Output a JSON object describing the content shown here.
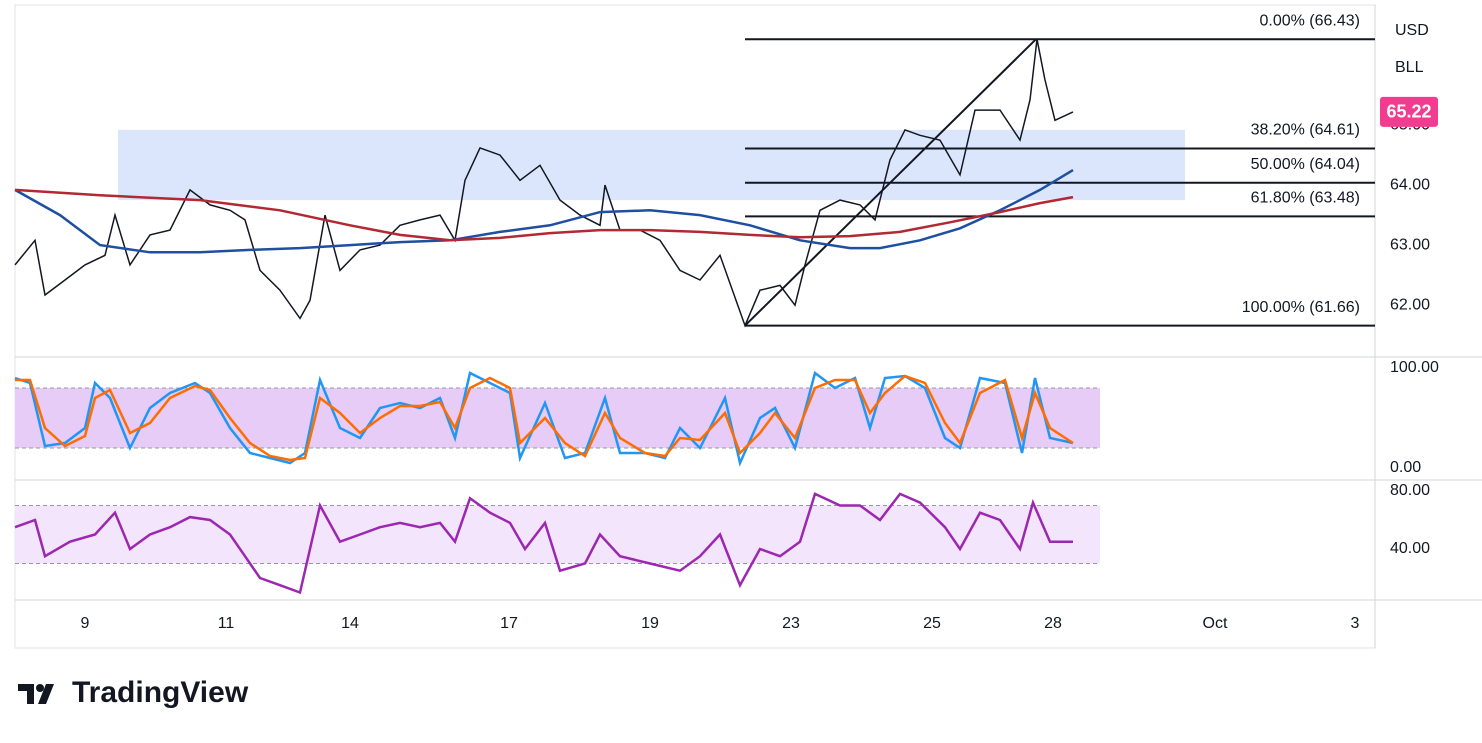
{
  "branding": "TradingView",
  "chart_data": [
    {
      "type": "line",
      "currency": "USD",
      "unit": "BLL",
      "xlim": [
        0,
        136
      ],
      "xticks": [
        {
          "value": 7,
          "label": "9"
        },
        {
          "value": 21.1,
          "label": "11"
        },
        {
          "value": 33.5,
          "label": "14"
        },
        {
          "value": 49.4,
          "label": "17"
        },
        {
          "value": 63.5,
          "label": "19"
        },
        {
          "value": 77.6,
          "label": "23"
        },
        {
          "value": 91.7,
          "label": "25"
        },
        {
          "value": 103.8,
          "label": "28"
        },
        {
          "value": 120,
          "label": "Oct"
        },
        {
          "value": 134,
          "label": "3"
        }
      ],
      "ylim": [
        61.17,
        67.0
      ],
      "yticks": [
        {
          "value": 62,
          "label": "62.00"
        },
        {
          "value": 63,
          "label": "63.00"
        },
        {
          "value": 64,
          "label": "64.00"
        },
        {
          "value": 65,
          "label": "65.00"
        }
      ],
      "last_price": {
        "value": 65.22,
        "label": "65.22",
        "color": "#f23c8f"
      },
      "zone": {
        "from": 63.75,
        "to": 64.92,
        "x": [
          10.3,
          117
        ],
        "color": "#dbe6fd"
      },
      "fib": {
        "x_start": 73,
        "x_end": 102.1,
        "color": "#131722",
        "levels": [
          {
            "label": "0.00% (66.43)",
            "value": 66.43
          },
          {
            "label": "38.20% (64.61)",
            "value": 64.61
          },
          {
            "label": "50.00% (64.04)",
            "value": 64.04
          },
          {
            "label": "61.80% (63.48)",
            "value": 63.48
          },
          {
            "label": "100.00% (61.66)",
            "value": 61.66
          }
        ]
      },
      "series": [
        {
          "color": "#131722",
          "x": [
            0,
            2,
            3,
            5,
            7,
            9,
            10,
            11.5,
            13.5,
            15.5,
            17.5,
            19.5,
            21.5,
            23,
            24.5,
            26.5,
            28.5,
            29.5,
            31,
            32.5,
            34.5,
            36.5,
            38.5,
            40.5,
            42.5,
            44,
            45,
            46.5,
            48.5,
            50.5,
            52.5,
            54.5,
            56.5,
            58.5,
            59,
            60.5,
            62.5,
            64.5,
            66.5,
            68.5,
            70.5,
            73,
            74.5,
            76.5,
            78,
            79,
            80.5,
            82.5,
            84.5,
            86,
            87.5,
            89,
            90.5,
            92.5,
            94.5,
            96,
            98.5,
            100.5,
            101.5,
            102.2,
            103,
            104,
            105.8
          ],
          "values": [
            62.67,
            63.08,
            62.17,
            62.42,
            62.67,
            62.83,
            63.5,
            62.67,
            63.17,
            63.25,
            63.92,
            63.67,
            63.58,
            63.42,
            62.58,
            62.25,
            61.78,
            62.08,
            63.5,
            62.58,
            62.92,
            63,
            63.33,
            63.42,
            63.5,
            63.08,
            64.08,
            64.62,
            64.5,
            64.08,
            64.33,
            63.75,
            63.5,
            63.33,
            64,
            63.25,
            63.25,
            63.08,
            62.58,
            62.42,
            62.83,
            61.66,
            62.25,
            62.33,
            62,
            62.67,
            63.58,
            63.75,
            63.67,
            63.42,
            64.42,
            64.92,
            64.83,
            64.75,
            64.17,
            65.25,
            65.25,
            64.75,
            65.42,
            66.43,
            65.75,
            65.08,
            65.22
          ]
        },
        {
          "color": "#1e4fa0",
          "x": [
            0,
            4.5,
            8.5,
            13.5,
            18.5,
            23.5,
            28.5,
            33.5,
            38.5,
            43.5,
            48.5,
            53.5,
            58.5,
            63.5,
            68.5,
            73.5,
            78.5,
            83.5,
            86.5,
            90.5,
            94.5,
            98.5,
            102.5,
            105.8
          ],
          "values": [
            63.92,
            63.5,
            63,
            62.88,
            62.88,
            62.92,
            62.95,
            63,
            63.05,
            63.08,
            63.22,
            63.33,
            63.55,
            63.58,
            63.5,
            63.33,
            63.08,
            62.95,
            62.95,
            63.08,
            63.28,
            63.58,
            63.92,
            64.25
          ]
        },
        {
          "color": "#b22833",
          "x": [
            0,
            8.5,
            18.5,
            26.5,
            33.5,
            38.5,
            43.5,
            48.5,
            53.5,
            58.5,
            63.5,
            68.5,
            73.5,
            78.5,
            83.5,
            88.5,
            93.5,
            98.5,
            102.5,
            105.8
          ],
          "values": [
            63.92,
            63.83,
            63.75,
            63.58,
            63.33,
            63.17,
            63.08,
            63.12,
            63.2,
            63.25,
            63.25,
            63.22,
            63.17,
            63.13,
            63.15,
            63.22,
            63.38,
            63.55,
            63.7,
            63.8
          ]
        }
      ]
    },
    {
      "type": "line",
      "ylim": [
        -10,
        110
      ],
      "yticks": [
        {
          "value": 100,
          "label": "100.00"
        },
        {
          "value": 0,
          "label": "0.00"
        }
      ],
      "bands": [
        20,
        80
      ],
      "band_color": "#e6ccf7",
      "series": [
        {
          "color": "#2196f3",
          "x": [
            0,
            1.5,
            3,
            5,
            7,
            8,
            9.5,
            11.5,
            13.5,
            15.5,
            18,
            19.5,
            21.5,
            23.5,
            25.5,
            27.5,
            29,
            30.5,
            32.5,
            34.5,
            36.5,
            38.5,
            40.5,
            42.5,
            44,
            45.5,
            47.5,
            49.5,
            50.5,
            53,
            55,
            57,
            59,
            60.5,
            63,
            65,
            66.5,
            68.5,
            71,
            72.5,
            74.5,
            76,
            78,
            80,
            82,
            84,
            85.5,
            87,
            89,
            91,
            93,
            94.5,
            96.5,
            99,
            100.7,
            102,
            103.5,
            105.8
          ],
          "values": [
            90,
            85,
            22,
            25,
            40,
            85,
            70,
            20,
            60,
            75,
            85,
            75,
            40,
            15,
            10,
            5,
            15,
            88,
            40,
            30,
            60,
            65,
            60,
            70,
            30,
            95,
            85,
            75,
            10,
            65,
            10,
            15,
            70,
            15,
            15,
            10,
            40,
            20,
            70,
            5,
            50,
            60,
            20,
            95,
            80,
            90,
            40,
            90,
            92,
            80,
            30,
            20,
            90,
            85,
            15,
            90,
            30,
            25
          ]
        },
        {
          "color": "#ff6d00",
          "x": [
            0,
            1.5,
            3,
            5,
            7,
            8,
            9.5,
            11.5,
            13.5,
            15.5,
            18,
            19.5,
            21.5,
            23.5,
            25.5,
            27.5,
            29,
            30.5,
            32.5,
            34.5,
            36.5,
            38.5,
            40.5,
            42.5,
            44,
            45.5,
            47.5,
            49.5,
            50.5,
            53,
            55,
            57,
            59,
            60.5,
            63,
            65,
            66.5,
            68.5,
            71,
            72.5,
            74.5,
            76,
            78,
            80,
            82,
            84,
            85.5,
            87,
            89,
            91,
            93,
            94.5,
            96.5,
            99,
            100.7,
            102,
            103.5,
            105.8
          ],
          "values": [
            88,
            88,
            40,
            22,
            32,
            70,
            78,
            35,
            45,
            70,
            82,
            78,
            50,
            25,
            12,
            8,
            10,
            70,
            55,
            35,
            50,
            62,
            62,
            66,
            40,
            80,
            90,
            80,
            25,
            50,
            25,
            12,
            55,
            30,
            15,
            12,
            30,
            28,
            55,
            15,
            35,
            55,
            30,
            80,
            88,
            88,
            55,
            75,
            92,
            85,
            45,
            25,
            75,
            88,
            30,
            75,
            40,
            25
          ]
        }
      ]
    },
    {
      "type": "line",
      "ylim": [
        6.2,
        86.2
      ],
      "yticks": [
        {
          "value": 80,
          "label": "80.00"
        },
        {
          "value": 40,
          "label": "40.00"
        }
      ],
      "bands": [
        30,
        70
      ],
      "band_color": "#f3e5fb",
      "series": [
        {
          "color": "#9c27b0",
          "x": [
            0,
            2,
            3,
            5.5,
            8,
            10,
            11.5,
            13.5,
            15.5,
            17.5,
            19.5,
            21.5,
            23,
            24.5,
            26.5,
            28.5,
            29.5,
            30.5,
            32.5,
            34.5,
            36.5,
            38.5,
            40.5,
            42.5,
            44,
            45.5,
            47.5,
            49.5,
            51,
            53,
            54.5,
            57,
            58.5,
            60.5,
            63.5,
            66.5,
            68.5,
            70.5,
            72.5,
            74.5,
            76.5,
            78.5,
            80,
            82.5,
            84.5,
            86.5,
            88.5,
            90.5,
            93,
            94.5,
            96.5,
            98.5,
            100.5,
            101.8,
            103.5,
            105.8
          ],
          "values": [
            55,
            60,
            35,
            45,
            50,
            65,
            40,
            50,
            55,
            62,
            60,
            50,
            35,
            20,
            15,
            10,
            40,
            70,
            45,
            50,
            55,
            58,
            55,
            58,
            45,
            75,
            65,
            58,
            40,
            58,
            25,
            30,
            50,
            35,
            30,
            25,
            35,
            50,
            15,
            40,
            35,
            45,
            78,
            70,
            70,
            60,
            78,
            72,
            55,
            40,
            65,
            60,
            40,
            72,
            45,
            45
          ]
        }
      ]
    }
  ]
}
